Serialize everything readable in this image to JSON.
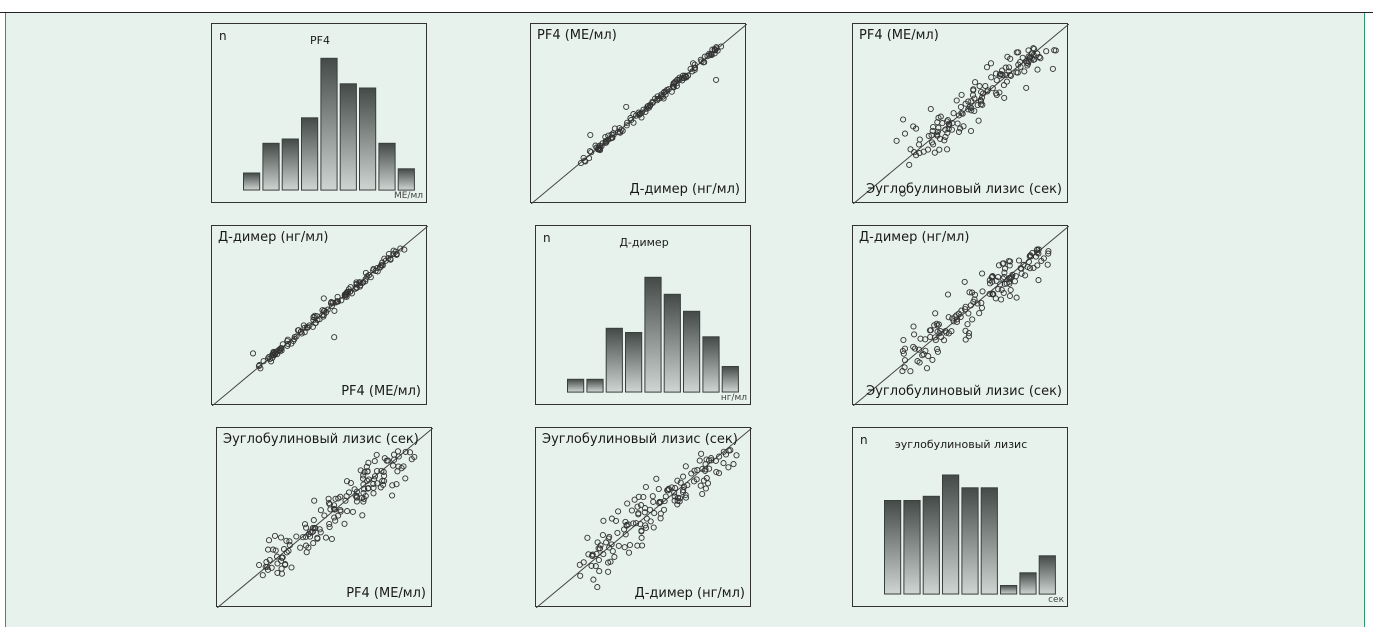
{
  "figure_panels": [
    {
      "axis_label": "n",
      "title": "PF4",
      "unit": "МЕ/мл"
    },
    {
      "y_label": "PF4 (МЕ/мл)",
      "x_label": "Д-димер (нг/мл)"
    },
    {
      "y_label": "PF4 (МЕ/мл)",
      "x_label": "Эуглобулиновый лизис (сек)"
    },
    {
      "y_label": "Д-димер (нг/мл)",
      "x_label": "PF4 (МЕ/мл)"
    },
    {
      "axis_label": "n",
      "title": "Д-димер",
      "unit": "нг/мл"
    },
    {
      "y_label": "Д-димер (нг/мл)",
      "x_label": "Эуглобулиновый лизис (сек)"
    },
    {
      "y_label": "Эуглобулиновый лизис (сек)",
      "x_label": "PF4 (МЕ/мл)"
    },
    {
      "y_label": "Эуглобулиновый лизис (сек)",
      "x_label": "Д-димер (нг/мл)"
    },
    {
      "axis_label": "n",
      "title": "эуглобулиновый лизис",
      "unit": "сек"
    }
  ],
  "chart_data": [
    {
      "type": "bar",
      "title": "PF4",
      "ylabel": "n",
      "xlabel": "МЕ/мл",
      "values": [
        2,
        5.5,
        6,
        8.5,
        15.5,
        12.5,
        12,
        5.5,
        2.5
      ],
      "ylim": [
        0,
        16
      ]
    },
    {
      "type": "scatter",
      "xlabel": "Д-димер (нг/мл)",
      "ylabel": "PF4 (МЕ/мл)",
      "trend": "strong positive linear",
      "fit_line": true,
      "seed": 3,
      "n_points": 140,
      "spread": 0.012,
      "outliers": 3
    },
    {
      "type": "scatter",
      "xlabel": "Эуглобулиновый лизис (сек)",
      "ylabel": "PF4 (МЕ/мл)",
      "trend": "positive linear",
      "fit_line": true,
      "seed": 11,
      "n_points": 150,
      "spread": 0.055,
      "outliers": 8
    },
    {
      "type": "scatter",
      "xlabel": "PF4 (МЕ/мл)",
      "ylabel": "Д-димер (нг/мл)",
      "trend": "strong positive linear",
      "fit_line": true,
      "seed": 5,
      "n_points": 140,
      "spread": 0.012,
      "outliers": 3
    },
    {
      "type": "bar",
      "title": "Д-димер",
      "ylabel": "n",
      "xlabel": "нг/мл",
      "values": [
        1.5,
        1.5,
        7.5,
        7,
        13.5,
        11.5,
        9.5,
        6.5,
        3
      ],
      "ylim": [
        0,
        16
      ]
    },
    {
      "type": "scatter",
      "xlabel": "Эуглобулиновый лизис (сек)",
      "ylabel": "Д-димер (нг/мл)",
      "trend": "positive linear",
      "fit_line": true,
      "seed": 17,
      "n_points": 150,
      "spread": 0.055,
      "outliers": 8
    },
    {
      "type": "scatter",
      "xlabel": "PF4 (МЕ/мл)",
      "ylabel": "Эуглобулиновый лизис (сек)",
      "trend": "positive linear",
      "fit_line": true,
      "seed": 23,
      "n_points": 150,
      "spread": 0.055,
      "outliers": 8
    },
    {
      "type": "scatter",
      "xlabel": "Д-димер (нг/мл)",
      "ylabel": "Эуглобулиновый лизис (сек)",
      "trend": "positive linear",
      "fit_line": true,
      "seed": 29,
      "n_points": 150,
      "spread": 0.055,
      "outliers": 8
    },
    {
      "type": "bar",
      "title": "эуглобулиновый лизис",
      "ylabel": "n",
      "xlabel": "сек",
      "values": [
        11,
        11,
        11.5,
        14,
        12.5,
        12.5,
        1,
        2.5,
        4.5
      ],
      "ylim": [
        0,
        16
      ]
    }
  ]
}
